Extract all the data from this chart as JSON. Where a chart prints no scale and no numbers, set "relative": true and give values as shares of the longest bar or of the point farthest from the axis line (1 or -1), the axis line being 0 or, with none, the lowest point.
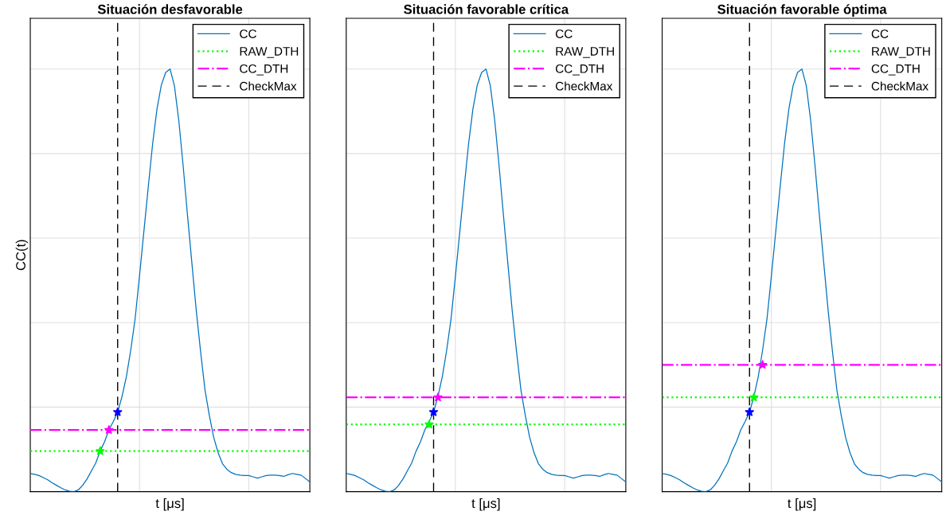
{
  "chart_data": [
    {
      "type": "line",
      "title": "Situación desfavorable",
      "xlabel": "t [μs]",
      "ylabel": "CC(t)",
      "relative": true,
      "grid": true,
      "legend": "top right",
      "tick_labels": false,
      "categories": [
        null,
        null,
        null,
        null,
        null,
        null,
        null,
        null,
        null,
        null,
        null,
        null,
        null,
        null,
        null,
        null,
        null,
        null,
        null,
        null,
        null,
        null,
        null,
        null,
        null,
        null,
        null,
        null,
        null,
        null,
        null,
        null,
        null,
        null,
        null,
        null,
        null,
        null,
        null,
        null,
        null,
        null,
        null,
        null,
        null,
        null,
        null,
        null,
        null,
        null,
        null,
        null,
        null,
        null,
        null,
        null,
        null,
        null,
        null,
        null,
        null,
        null,
        null,
        null,
        null
      ],
      "series": [
        {
          "name": "CC",
          "color": "#0072bd",
          "line_style": "solid",
          "marker": "none",
          "values": [
            0.043,
            0.041,
            0.038,
            0.033,
            0.028,
            0.021,
            0.015,
            0.009,
            0.004,
            0.001,
            0.0,
            0.004,
            0.015,
            0.03,
            0.049,
            0.068,
            0.096,
            0.118,
            0.146,
            0.166,
            0.188,
            0.225,
            0.272,
            0.335,
            0.409,
            0.51,
            0.615,
            0.72,
            0.822,
            0.905,
            0.962,
            0.992,
            1.0,
            0.96,
            0.878,
            0.77,
            0.653,
            0.54,
            0.428,
            0.33,
            0.24,
            0.18,
            0.128,
            0.092,
            0.066,
            0.053,
            0.045,
            0.041,
            0.039,
            0.038,
            0.038,
            0.035,
            0.032,
            0.035,
            0.038,
            0.039,
            0.039,
            0.038,
            0.036,
            0.04,
            0.043,
            0.041,
            0.039,
            0.031,
            0.023
          ]
        },
        {
          "name": "RAW_DTH",
          "color": "#00ff00",
          "line_style": "dotted",
          "marker": "none",
          "values": [
            0.096,
            0.096,
            0.096,
            0.096,
            0.096,
            0.096,
            0.096,
            0.096,
            0.096,
            0.096,
            0.096,
            0.096,
            0.096,
            0.096,
            0.096,
            0.096,
            0.096,
            0.096,
            0.096,
            0.096,
            0.096,
            0.096,
            0.096,
            0.096,
            0.096,
            0.096,
            0.096,
            0.096,
            0.096,
            0.096,
            0.096,
            0.096,
            0.096,
            0.096,
            0.096,
            0.096,
            0.096,
            0.096,
            0.096,
            0.096,
            0.096,
            0.096,
            0.096,
            0.096,
            0.096,
            0.096,
            0.096,
            0.096,
            0.096,
            0.096,
            0.096,
            0.096,
            0.096,
            0.096,
            0.096,
            0.096,
            0.096,
            0.096,
            0.096,
            0.096,
            0.096,
            0.096,
            0.096,
            0.096,
            0.096
          ]
        },
        {
          "name": "CC_DTH",
          "color": "#ff00ff",
          "line_style": "dashdot",
          "marker": "none",
          "values": [
            0.146,
            0.146,
            0.146,
            0.146,
            0.146,
            0.146,
            0.146,
            0.146,
            0.146,
            0.146,
            0.146,
            0.146,
            0.146,
            0.146,
            0.146,
            0.146,
            0.146,
            0.146,
            0.146,
            0.146,
            0.146,
            0.146,
            0.146,
            0.146,
            0.146,
            0.146,
            0.146,
            0.146,
            0.146,
            0.146,
            0.146,
            0.146,
            0.146,
            0.146,
            0.146,
            0.146,
            0.146,
            0.146,
            0.146,
            0.146,
            0.146,
            0.146,
            0.146,
            0.146,
            0.146,
            0.146,
            0.146,
            0.146,
            0.146,
            0.146,
            0.146,
            0.146,
            0.146,
            0.146,
            0.146,
            0.146,
            0.146,
            0.146,
            0.146,
            0.146,
            0.146,
            0.146,
            0.146,
            0.146,
            0.146
          ]
        },
        {
          "color": "#00ff00",
          "line_style": "none",
          "marker": "star",
          "values": [
            null,
            null,
            null,
            null,
            null,
            null,
            null,
            null,
            null,
            null,
            null,
            null,
            null,
            null,
            null,
            null,
            0.096,
            null,
            null,
            null,
            null,
            null,
            null,
            null,
            null,
            null,
            null,
            null,
            null,
            null,
            null,
            null,
            null,
            null,
            null,
            null,
            null,
            null,
            null,
            null,
            null,
            null,
            null,
            null,
            null,
            null,
            null,
            null,
            null,
            null,
            null,
            null,
            null,
            null,
            null,
            null,
            null,
            null,
            null,
            null,
            null,
            null,
            null,
            null,
            null
          ]
        },
        {
          "color": "#ff00ff",
          "line_style": "none",
          "marker": "star",
          "values": [
            null,
            null,
            null,
            null,
            null,
            null,
            null,
            null,
            null,
            null,
            null,
            null,
            null,
            null,
            null,
            null,
            null,
            null,
            0.146,
            null,
            null,
            null,
            null,
            null,
            null,
            null,
            null,
            null,
            null,
            null,
            null,
            null,
            null,
            null,
            null,
            null,
            null,
            null,
            null,
            null,
            null,
            null,
            null,
            null,
            null,
            null,
            null,
            null,
            null,
            null,
            null,
            null,
            null,
            null,
            null,
            null,
            null,
            null,
            null,
            null,
            null,
            null,
            null,
            null,
            null
          ]
        },
        {
          "color": "#0000ff",
          "line_style": "none",
          "marker": "star",
          "values": [
            null,
            null,
            null,
            null,
            null,
            null,
            null,
            null,
            null,
            null,
            null,
            null,
            null,
            null,
            null,
            null,
            null,
            null,
            null,
            null,
            0.188,
            null,
            null,
            null,
            null,
            null,
            null,
            null,
            null,
            null,
            null,
            null,
            null,
            null,
            null,
            null,
            null,
            null,
            null,
            null,
            null,
            null,
            null,
            null,
            null,
            null,
            null,
            null,
            null,
            null,
            null,
            null,
            null,
            null,
            null,
            null,
            null,
            null,
            null,
            null,
            null,
            null,
            null,
            null,
            null
          ]
        }
      ],
      "ref_lines": [
        {
          "axis": "x",
          "label": "CheckMax",
          "color": "#000000",
          "line_style": "dashed"
        }
      ]
    },
    {
      "type": "line",
      "title": "Situación favorable crítica",
      "xlabel": "t [μs]",
      "relative": true,
      "grid": true,
      "legend": "top right",
      "tick_labels": false,
      "categories": [
        null,
        null,
        null,
        null,
        null,
        null,
        null,
        null,
        null,
        null,
        null,
        null,
        null,
        null,
        null,
        null,
        null,
        null,
        null,
        null,
        null,
        null,
        null,
        null,
        null,
        null,
        null,
        null,
        null,
        null,
        null,
        null,
        null,
        null,
        null,
        null,
        null,
        null,
        null,
        null,
        null,
        null,
        null,
        null,
        null,
        null,
        null,
        null,
        null,
        null,
        null,
        null,
        null,
        null,
        null,
        null,
        null,
        null,
        null,
        null,
        null,
        null,
        null,
        null,
        null
      ],
      "series": [
        {
          "name": "CC",
          "color": "#0072bd",
          "line_style": "solid",
          "marker": "none",
          "values": [
            0.043,
            0.041,
            0.038,
            0.033,
            0.028,
            0.021,
            0.015,
            0.009,
            0.004,
            0.001,
            0.0,
            0.004,
            0.015,
            0.03,
            0.049,
            0.068,
            0.096,
            0.118,
            0.146,
            0.166,
            0.188,
            0.225,
            0.272,
            0.335,
            0.409,
            0.51,
            0.615,
            0.72,
            0.822,
            0.905,
            0.962,
            0.992,
            1.0,
            0.96,
            0.878,
            0.77,
            0.653,
            0.54,
            0.428,
            0.33,
            0.24,
            0.18,
            0.128,
            0.092,
            0.066,
            0.053,
            0.045,
            0.041,
            0.039,
            0.038,
            0.038,
            0.035,
            0.032,
            0.035,
            0.038,
            0.039,
            0.039,
            0.038,
            0.036,
            0.04,
            0.043,
            0.041,
            0.039,
            0.031,
            0.023
          ]
        },
        {
          "name": "RAW_DTH",
          "color": "#00ff00",
          "line_style": "dotted",
          "marker": "none",
          "values": [
            0.159,
            0.159,
            0.159,
            0.159,
            0.159,
            0.159,
            0.159,
            0.159,
            0.159,
            0.159,
            0.159,
            0.159,
            0.159,
            0.159,
            0.159,
            0.159,
            0.159,
            0.159,
            0.159,
            0.159,
            0.159,
            0.159,
            0.159,
            0.159,
            0.159,
            0.159,
            0.159,
            0.159,
            0.159,
            0.159,
            0.159,
            0.159,
            0.159,
            0.159,
            0.159,
            0.159,
            0.159,
            0.159,
            0.159,
            0.159,
            0.159,
            0.159,
            0.159,
            0.159,
            0.159,
            0.159,
            0.159,
            0.159,
            0.159,
            0.159,
            0.159,
            0.159,
            0.159,
            0.159,
            0.159,
            0.159,
            0.159,
            0.159,
            0.159,
            0.159,
            0.159,
            0.159,
            0.159,
            0.159,
            0.159
          ]
        },
        {
          "name": "CC_DTH",
          "color": "#ff00ff",
          "line_style": "dashdot",
          "marker": "none",
          "values": [
            0.223,
            0.223,
            0.223,
            0.223,
            0.223,
            0.223,
            0.223,
            0.223,
            0.223,
            0.223,
            0.223,
            0.223,
            0.223,
            0.223,
            0.223,
            0.223,
            0.223,
            0.223,
            0.223,
            0.223,
            0.223,
            0.223,
            0.223,
            0.223,
            0.223,
            0.223,
            0.223,
            0.223,
            0.223,
            0.223,
            0.223,
            0.223,
            0.223,
            0.223,
            0.223,
            0.223,
            0.223,
            0.223,
            0.223,
            0.223,
            0.223,
            0.223,
            0.223,
            0.223,
            0.223,
            0.223,
            0.223,
            0.223,
            0.223,
            0.223,
            0.223,
            0.223,
            0.223,
            0.223,
            0.223,
            0.223,
            0.223,
            0.223,
            0.223,
            0.223,
            0.223,
            0.223,
            0.223,
            0.223,
            0.223
          ]
        },
        {
          "color": "#00ff00",
          "line_style": "none",
          "marker": "star",
          "values": [
            null,
            null,
            null,
            null,
            null,
            null,
            null,
            null,
            null,
            null,
            null,
            null,
            null,
            null,
            null,
            null,
            null,
            null,
            null,
            0.159,
            null,
            null,
            null,
            null,
            null,
            null,
            null,
            null,
            null,
            null,
            null,
            null,
            null,
            null,
            null,
            null,
            null,
            null,
            null,
            null,
            null,
            null,
            null,
            null,
            null,
            null,
            null,
            null,
            null,
            null,
            null,
            null,
            null,
            null,
            null,
            null,
            null,
            null,
            null,
            null,
            null,
            null,
            null,
            null,
            null
          ]
        },
        {
          "color": "#ff00ff",
          "line_style": "none",
          "marker": "star",
          "values": [
            null,
            null,
            null,
            null,
            null,
            null,
            null,
            null,
            null,
            null,
            null,
            null,
            null,
            null,
            null,
            null,
            null,
            null,
            null,
            null,
            null,
            0.223,
            null,
            null,
            null,
            null,
            null,
            null,
            null,
            null,
            null,
            null,
            null,
            null,
            null,
            null,
            null,
            null,
            null,
            null,
            null,
            null,
            null,
            null,
            null,
            null,
            null,
            null,
            null,
            null,
            null,
            null,
            null,
            null,
            null,
            null,
            null,
            null,
            null,
            null,
            null,
            null,
            null,
            null,
            null
          ]
        },
        {
          "color": "#0000ff",
          "line_style": "none",
          "marker": "star",
          "values": [
            null,
            null,
            null,
            null,
            null,
            null,
            null,
            null,
            null,
            null,
            null,
            null,
            null,
            null,
            null,
            null,
            null,
            null,
            null,
            null,
            0.188,
            null,
            null,
            null,
            null,
            null,
            null,
            null,
            null,
            null,
            null,
            null,
            null,
            null,
            null,
            null,
            null,
            null,
            null,
            null,
            null,
            null,
            null,
            null,
            null,
            null,
            null,
            null,
            null,
            null,
            null,
            null,
            null,
            null,
            null,
            null,
            null,
            null,
            null,
            null,
            null,
            null,
            null,
            null,
            null
          ]
        }
      ],
      "ref_lines": [
        {
          "axis": "x",
          "label": "CheckMax",
          "color": "#000000",
          "line_style": "dashed"
        }
      ]
    },
    {
      "type": "line",
      "title": "Situación favorable óptima",
      "xlabel": "t [μs]",
      "relative": true,
      "grid": true,
      "legend": "top right",
      "tick_labels": false,
      "categories": [
        null,
        null,
        null,
        null,
        null,
        null,
        null,
        null,
        null,
        null,
        null,
        null,
        null,
        null,
        null,
        null,
        null,
        null,
        null,
        null,
        null,
        null,
        null,
        null,
        null,
        null,
        null,
        null,
        null,
        null,
        null,
        null,
        null,
        null,
        null,
        null,
        null,
        null,
        null,
        null,
        null,
        null,
        null,
        null,
        null,
        null,
        null,
        null,
        null,
        null,
        null,
        null,
        null,
        null,
        null,
        null,
        null,
        null,
        null,
        null,
        null,
        null,
        null,
        null,
        null
      ],
      "series": [
        {
          "name": "CC",
          "color": "#0072bd",
          "line_style": "solid",
          "marker": "none",
          "values": [
            0.043,
            0.041,
            0.038,
            0.033,
            0.028,
            0.021,
            0.015,
            0.009,
            0.004,
            0.001,
            0.0,
            0.004,
            0.015,
            0.03,
            0.049,
            0.068,
            0.096,
            0.118,
            0.146,
            0.166,
            0.188,
            0.225,
            0.272,
            0.335,
            0.409,
            0.51,
            0.615,
            0.72,
            0.822,
            0.905,
            0.962,
            0.992,
            1.0,
            0.96,
            0.878,
            0.77,
            0.653,
            0.54,
            0.428,
            0.33,
            0.24,
            0.18,
            0.128,
            0.092,
            0.066,
            0.053,
            0.045,
            0.041,
            0.039,
            0.038,
            0.038,
            0.035,
            0.032,
            0.035,
            0.038,
            0.039,
            0.039,
            0.038,
            0.036,
            0.04,
            0.043,
            0.041,
            0.039,
            0.031,
            0.023
          ]
        },
        {
          "name": "RAW_DTH",
          "color": "#00ff00",
          "line_style": "dotted",
          "marker": "none",
          "values": [
            0.223,
            0.223,
            0.223,
            0.223,
            0.223,
            0.223,
            0.223,
            0.223,
            0.223,
            0.223,
            0.223,
            0.223,
            0.223,
            0.223,
            0.223,
            0.223,
            0.223,
            0.223,
            0.223,
            0.223,
            0.223,
            0.223,
            0.223,
            0.223,
            0.223,
            0.223,
            0.223,
            0.223,
            0.223,
            0.223,
            0.223,
            0.223,
            0.223,
            0.223,
            0.223,
            0.223,
            0.223,
            0.223,
            0.223,
            0.223,
            0.223,
            0.223,
            0.223,
            0.223,
            0.223,
            0.223,
            0.223,
            0.223,
            0.223,
            0.223,
            0.223,
            0.223,
            0.223,
            0.223,
            0.223,
            0.223,
            0.223,
            0.223,
            0.223,
            0.223,
            0.223,
            0.223,
            0.223,
            0.223,
            0.223
          ]
        },
        {
          "name": "CC_DTH",
          "color": "#ff00ff",
          "line_style": "dashdot",
          "marker": "none",
          "values": [
            0.3,
            0.3,
            0.3,
            0.3,
            0.3,
            0.3,
            0.3,
            0.3,
            0.3,
            0.3,
            0.3,
            0.3,
            0.3,
            0.3,
            0.3,
            0.3,
            0.3,
            0.3,
            0.3,
            0.3,
            0.3,
            0.3,
            0.3,
            0.3,
            0.3,
            0.3,
            0.3,
            0.3,
            0.3,
            0.3,
            0.3,
            0.3,
            0.3,
            0.3,
            0.3,
            0.3,
            0.3,
            0.3,
            0.3,
            0.3,
            0.3,
            0.3,
            0.3,
            0.3,
            0.3,
            0.3,
            0.3,
            0.3,
            0.3,
            0.3,
            0.3,
            0.3,
            0.3,
            0.3,
            0.3,
            0.3,
            0.3,
            0.3,
            0.3,
            0.3,
            0.3,
            0.3,
            0.3,
            0.3,
            0.3
          ]
        },
        {
          "color": "#00ff00",
          "line_style": "none",
          "marker": "star",
          "values": [
            null,
            null,
            null,
            null,
            null,
            null,
            null,
            null,
            null,
            null,
            null,
            null,
            null,
            null,
            null,
            null,
            null,
            null,
            null,
            null,
            null,
            0.223,
            null,
            null,
            null,
            null,
            null,
            null,
            null,
            null,
            null,
            null,
            null,
            null,
            null,
            null,
            null,
            null,
            null,
            null,
            null,
            null,
            null,
            null,
            null,
            null,
            null,
            null,
            null,
            null,
            null,
            null,
            null,
            null,
            null,
            null,
            null,
            null,
            null,
            null,
            null,
            null,
            null,
            null,
            null
          ]
        },
        {
          "color": "#ff00ff",
          "line_style": "none",
          "marker": "star",
          "values": [
            null,
            null,
            null,
            null,
            null,
            null,
            null,
            null,
            null,
            null,
            null,
            null,
            null,
            null,
            null,
            null,
            null,
            null,
            null,
            null,
            null,
            null,
            null,
            0.3,
            null,
            null,
            null,
            null,
            null,
            null,
            null,
            null,
            null,
            null,
            null,
            null,
            null,
            null,
            null,
            null,
            null,
            null,
            null,
            null,
            null,
            null,
            null,
            null,
            null,
            null,
            null,
            null,
            null,
            null,
            null,
            null,
            null,
            null,
            null,
            null,
            null,
            null,
            null,
            null,
            null
          ]
        },
        {
          "color": "#0000ff",
          "line_style": "none",
          "marker": "star",
          "values": [
            null,
            null,
            null,
            null,
            null,
            null,
            null,
            null,
            null,
            null,
            null,
            null,
            null,
            null,
            null,
            null,
            null,
            null,
            null,
            null,
            0.188,
            null,
            null,
            null,
            null,
            null,
            null,
            null,
            null,
            null,
            null,
            null,
            null,
            null,
            null,
            null,
            null,
            null,
            null,
            null,
            null,
            null,
            null,
            null,
            null,
            null,
            null,
            null,
            null,
            null,
            null,
            null,
            null,
            null,
            null,
            null,
            null,
            null,
            null,
            null,
            null,
            null,
            null,
            null,
            null
          ]
        }
      ],
      "ref_lines": [
        {
          "axis": "x",
          "label": "CheckMax",
          "color": "#000000",
          "line_style": "dashed"
        }
      ]
    }
  ]
}
